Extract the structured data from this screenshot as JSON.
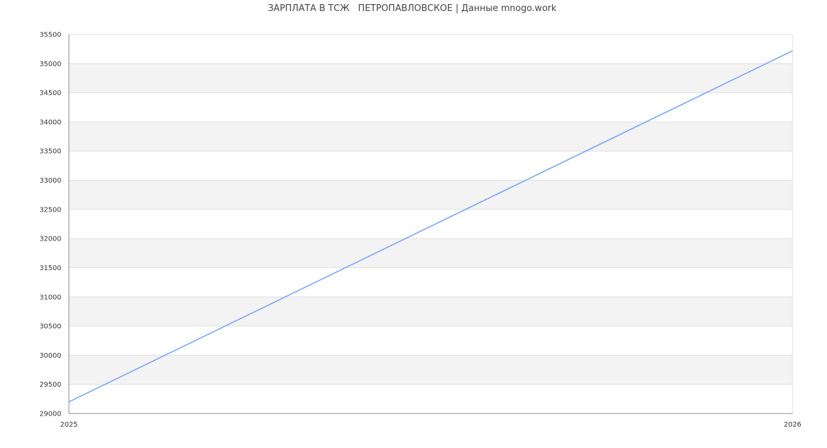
{
  "chart_data": {
    "type": "line",
    "title": "ЗАРПЛАТА В ТСЖ   ПЕТРОПАВЛОВСКОЕ | Данные mnogo.work",
    "xlabel": "",
    "ylabel": "",
    "x_ticks": [
      "2025",
      "2026"
    ],
    "y_ticks": [
      29000,
      29500,
      30000,
      30500,
      31000,
      31500,
      32000,
      32500,
      33000,
      33500,
      34000,
      34500,
      35000,
      35500
    ],
    "xlim": [
      2025,
      2026
    ],
    "ylim": [
      29000,
      35500
    ],
    "grid": true,
    "series": [
      {
        "x": [
          2025,
          2026
        ],
        "values": [
          29200,
          35220
        ],
        "color": "#7aa3f5"
      }
    ],
    "colors": {
      "band": "#f3f3f3",
      "grid": "#e0e0e0",
      "axis": "#888888"
    }
  }
}
